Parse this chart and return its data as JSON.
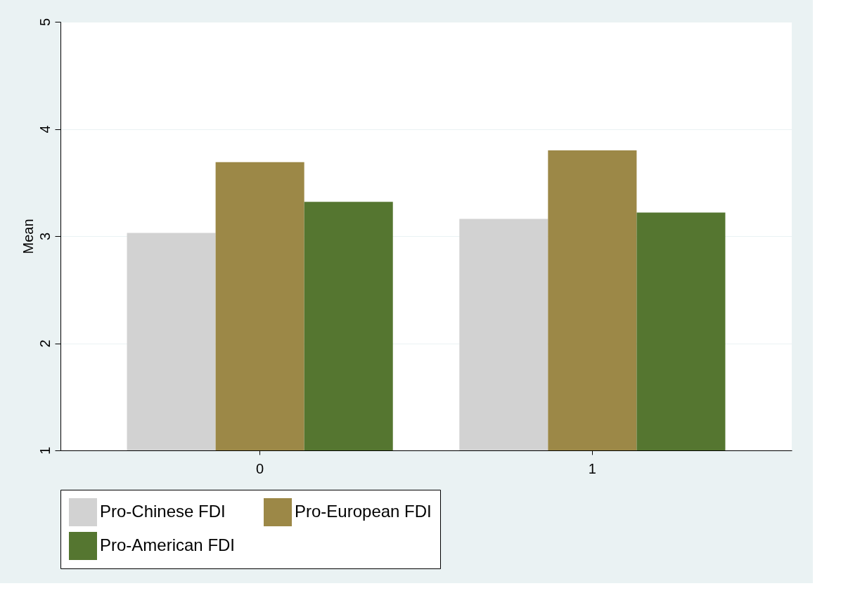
{
  "chart_data": {
    "type": "bar",
    "ylabel": "Mean",
    "categories": [
      "0",
      "1"
    ],
    "series": [
      {
        "name": "Pro-Chinese FDI",
        "color": "#d2d2d2",
        "values": [
          3.03,
          3.16
        ]
      },
      {
        "name": "Pro-European FDI",
        "color": "#9c8847",
        "values": [
          3.69,
          3.8
        ]
      },
      {
        "name": "Pro-American FDI",
        "color": "#557630",
        "values": [
          3.32,
          3.22
        ]
      }
    ],
    "ylim": [
      1,
      5
    ],
    "yticks": [
      1,
      2,
      3,
      4,
      5
    ],
    "grid": "y",
    "legend": "bottom"
  }
}
